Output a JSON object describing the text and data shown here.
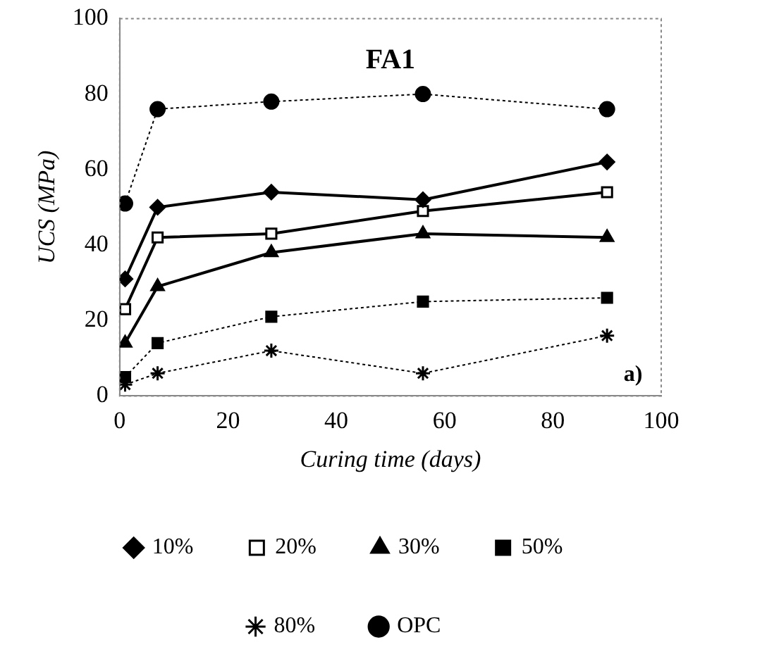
{
  "chart_data": {
    "type": "line",
    "title": "FA1",
    "xlabel": "Curing time (days)",
    "ylabel": "UCS (MPa)",
    "x": [
      1,
      7,
      28,
      56,
      90
    ],
    "xlim": [
      0,
      100
    ],
    "xticks": [
      0,
      20,
      40,
      60,
      80,
      100
    ],
    "ylim": [
      0,
      100
    ],
    "yticks": [
      0,
      20,
      40,
      60,
      80,
      100
    ],
    "grid": false,
    "legend": "bottom",
    "annotations": [
      "a)"
    ],
    "series": [
      {
        "name": "10%",
        "color": "#000000",
        "marker": "diamond",
        "line_style": "solid",
        "values": [
          31,
          50,
          54,
          52,
          62
        ]
      },
      {
        "name": "20%",
        "color": "#000000",
        "marker": "square-open",
        "line_style": "solid",
        "values": [
          23,
          42,
          43,
          49,
          54
        ]
      },
      {
        "name": "30%",
        "color": "#000000",
        "marker": "triangle",
        "line_style": "solid",
        "values": [
          14,
          29,
          38,
          43,
          42
        ]
      },
      {
        "name": "50%",
        "color": "#000000",
        "marker": "square",
        "line_style": "dotted",
        "values": [
          5,
          14,
          21,
          25,
          26
        ]
      },
      {
        "name": "80%",
        "color": "#000000",
        "marker": "cross",
        "line_style": "dotted",
        "values": [
          3,
          6,
          12,
          6,
          16
        ]
      },
      {
        "name": "OPC",
        "color": "#000000",
        "marker": "circle",
        "line_style": "dotted",
        "values": [
          51,
          76,
          78,
          80,
          76
        ]
      }
    ]
  }
}
